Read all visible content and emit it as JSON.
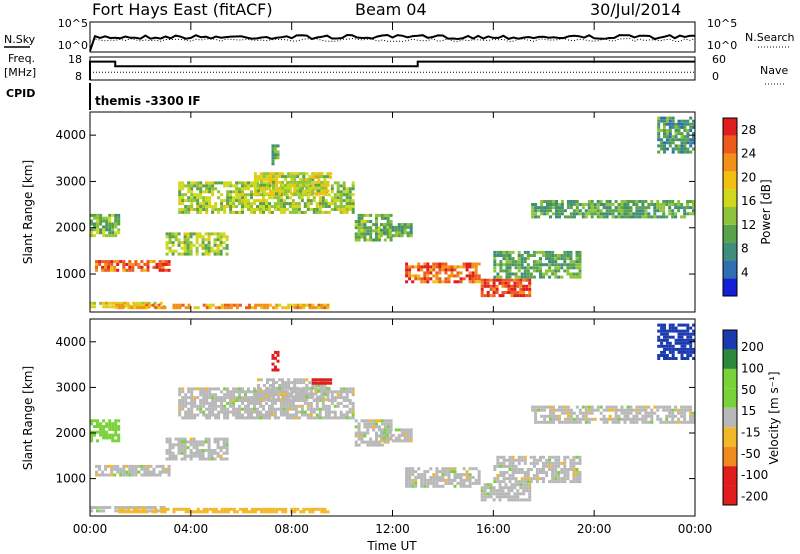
{
  "header": {
    "radar": "Fort Hays East (fitACF)",
    "beam": "Beam 04",
    "date": "30/Jul/2014"
  },
  "noise_panel": {
    "left_label": "N.Sky",
    "right_label": "N.Search",
    "left_ticks": [
      "10^5",
      "10^0"
    ],
    "right_ticks": [
      "10^5",
      "10^0"
    ]
  },
  "freq_panel": {
    "left_label_top": "Freq.",
    "left_label_unit": "[MHz]",
    "right_label": "Nave",
    "left_ticks": [
      "18",
      "8"
    ],
    "right_ticks": [
      "60",
      "0"
    ],
    "freq_steps": [
      {
        "t0": 0.0,
        "t1": 1.0,
        "mhz": 16
      },
      {
        "t0": 1.0,
        "t1": 13.0,
        "mhz": 14
      },
      {
        "t0": 13.0,
        "t1": 24.0,
        "mhz": 16
      }
    ],
    "nave_level": 20
  },
  "cpid": {
    "label": "CPID",
    "text": "themis -3300 IF"
  },
  "x_axis": {
    "label": "Time UT",
    "ticks": [
      "00:00",
      "04:00",
      "08:00",
      "12:00",
      "16:00",
      "20:00",
      "00:00"
    ],
    "range_hours": [
      0,
      24
    ]
  },
  "power_panel": {
    "ylabel": "Slant Range [km]",
    "yticks": [
      "1000",
      "2000",
      "3000",
      "4000"
    ],
    "ylim": [
      180,
      4500
    ],
    "colorbar_label": "Power [dB]",
    "colorbar_ticks": [
      "28",
      "24",
      "20",
      "16",
      "12",
      "8",
      "4"
    ],
    "scale": [
      0,
      30
    ]
  },
  "velocity_panel": {
    "ylabel": "Slant Range [km]",
    "yticks": [
      "1000",
      "2000",
      "3000",
      "4000"
    ],
    "ylim": [
      180,
      4500
    ],
    "colorbar_label": "Velocity [m s⁻¹]",
    "colorbar_ticks": [
      "200",
      "100",
      "50",
      "15",
      "-15",
      "-50",
      "-100",
      "-200"
    ]
  },
  "chart_data": {
    "type": "heatmap",
    "x_range_hours": [
      0,
      24
    ],
    "y_range_km": [
      180,
      4500
    ],
    "colors": {
      "power": [
        "#1420d8",
        "#2f6fb0",
        "#3f8e7a",
        "#5aa24a",
        "#8dc43a",
        "#cfd81a",
        "#f2c010",
        "#f29018",
        "#ec5a1c",
        "#e01c1c"
      ],
      "velocity": {
        "neg_large": "#e01c1c",
        "neg_mid": "#f08a1c",
        "neg_small": "#f2b828",
        "ground": "#b8b8b8",
        "pos_small": "#7ad23a",
        "pos_mid": "#2a8a3a",
        "pos_large": "#1c3ab0"
      }
    },
    "scatter_regions": [
      {
        "t": [
          0.0,
          3.0
        ],
        "r": [
          250,
          400
        ],
        "power": 18,
        "velocity": "ground"
      },
      {
        "t": [
          1.0,
          9.5
        ],
        "r": [
          250,
          360
        ],
        "power": 22,
        "velocity": "neg_small"
      },
      {
        "t": [
          0.2,
          3.2
        ],
        "r": [
          1050,
          1300
        ],
        "power": 26,
        "velocity": "ground"
      },
      {
        "t": [
          3.0,
          5.5
        ],
        "r": [
          1400,
          1900
        ],
        "power": 14,
        "velocity": "ground"
      },
      {
        "t": [
          0.0,
          1.2
        ],
        "r": [
          1800,
          2300
        ],
        "power": 12,
        "velocity": "pos_small"
      },
      {
        "t": [
          3.5,
          10.5
        ],
        "r": [
          2300,
          3000
        ],
        "power": 14,
        "velocity": "ground"
      },
      {
        "t": [
          6.5,
          9.5
        ],
        "r": [
          2700,
          3200
        ],
        "power": 16,
        "velocity": "ground"
      },
      {
        "t": [
          8.8,
          9.6
        ],
        "r": [
          3050,
          3200
        ],
        "power": 20,
        "velocity": "neg_large"
      },
      {
        "t": [
          7.2,
          7.5
        ],
        "r": [
          3350,
          3800
        ],
        "power": 10,
        "velocity": "neg_large"
      },
      {
        "t": [
          10.5,
          12.0
        ],
        "r": [
          1700,
          2300
        ],
        "power": 12,
        "velocity": "ground"
      },
      {
        "t": [
          11.5,
          12.8
        ],
        "r": [
          1800,
          2100
        ],
        "power": 10,
        "velocity": "ground"
      },
      {
        "t": [
          12.5,
          15.5
        ],
        "r": [
          800,
          1250
        ],
        "power": 26,
        "velocity": "ground"
      },
      {
        "t": [
          15.5,
          17.5
        ],
        "r": [
          500,
          900
        ],
        "power": 28,
        "velocity": "ground"
      },
      {
        "t": [
          16.0,
          19.5
        ],
        "r": [
          900,
          1500
        ],
        "power": 10,
        "velocity": "ground"
      },
      {
        "t": [
          17.5,
          24.0
        ],
        "r": [
          2200,
          2600
        ],
        "power": 10,
        "velocity": "ground"
      },
      {
        "t": [
          22.5,
          24.0
        ],
        "r": [
          3600,
          4400
        ],
        "power": 8,
        "velocity": "pos_large"
      }
    ]
  }
}
